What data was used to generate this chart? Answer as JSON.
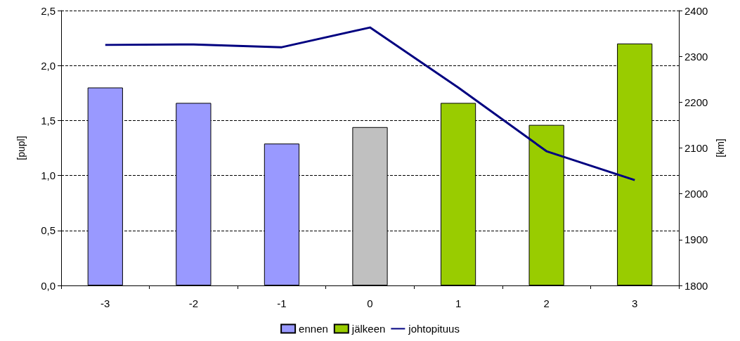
{
  "chart_data": {
    "type": "bar",
    "ylabel": "[pupl]",
    "y2label": "[km]",
    "categories": [
      "-3",
      "-2",
      "-1",
      "0",
      "1",
      "2",
      "3"
    ],
    "series": [
      {
        "name": "ennen",
        "color": "#9999ff",
        "values": [
          1.8,
          1.66,
          1.29,
          null,
          null,
          null,
          null
        ]
      },
      {
        "color": "#c0c0c0",
        "values": [
          null,
          null,
          null,
          1.44,
          null,
          null,
          null
        ]
      },
      {
        "name": "jälkeen",
        "color": "#99cc00",
        "values": [
          null,
          null,
          null,
          null,
          1.66,
          1.46,
          2.2
        ]
      },
      {
        "name": "johtopituus",
        "type": "line",
        "axis": "y2",
        "color": "#000080",
        "marker": "none",
        "values": [
          2325,
          2326,
          2320,
          2363,
          2232,
          2093,
          2030
        ]
      }
    ],
    "ylim": [
      0,
      2.5
    ],
    "yticks": [
      {
        "value": 0,
        "label": "0,0"
      },
      {
        "value": 0.5,
        "label": "0,5"
      },
      {
        "value": 1,
        "label": "1,0"
      },
      {
        "value": 1.5,
        "label": "1,5"
      },
      {
        "value": 2,
        "label": "2,0"
      },
      {
        "value": 2.5,
        "label": "2,5"
      }
    ],
    "y2lim": [
      1800,
      2400
    ],
    "y2ticks": [
      1800,
      1900,
      2000,
      2100,
      2200,
      2300,
      2400
    ],
    "grid": "y",
    "legend": "bottom"
  }
}
